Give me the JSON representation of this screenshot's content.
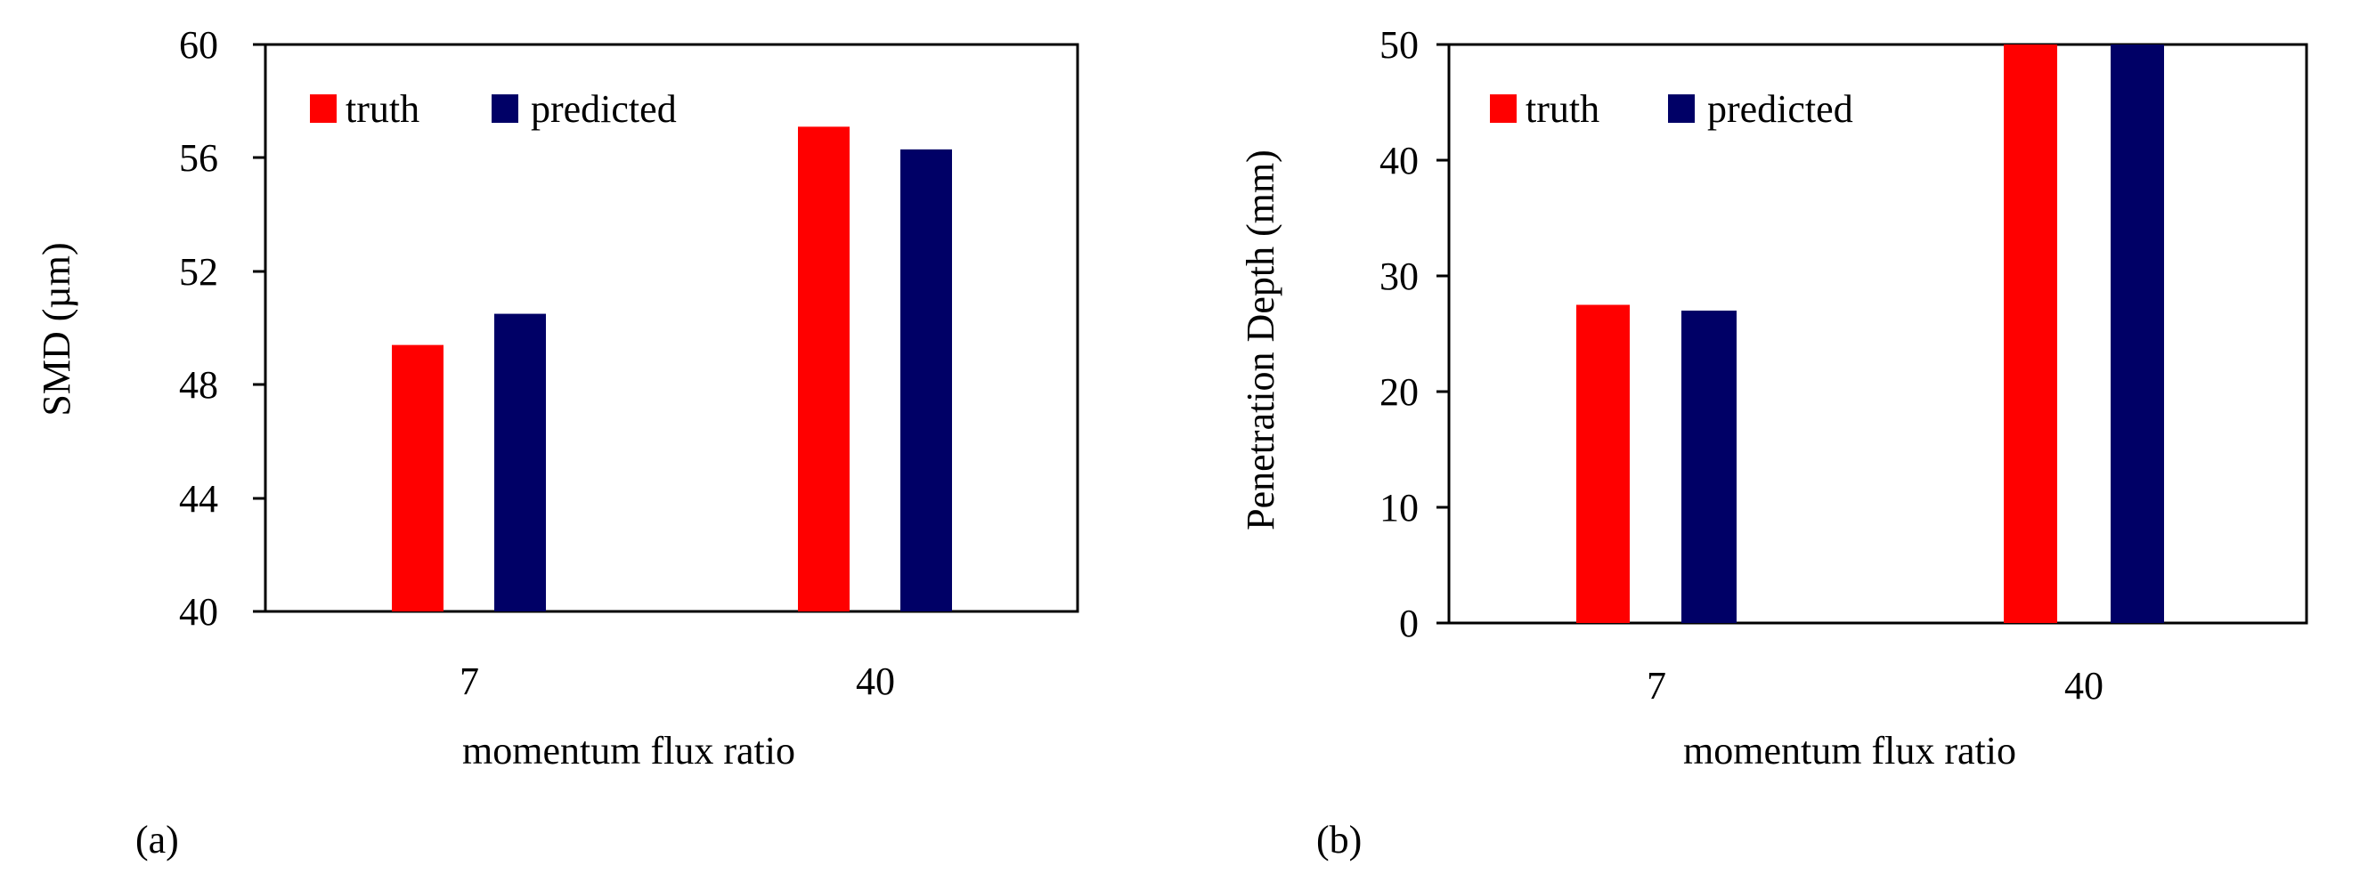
{
  "chart_data": [
    {
      "panel_label": "(a)",
      "type": "bar",
      "categories": [
        "7",
        "40"
      ],
      "xlabel": "momentum flux ratio",
      "ylabel": "SMD (µm)",
      "ylim": [
        40,
        60
      ],
      "yticks": [
        40,
        44,
        48,
        52,
        56,
        60
      ],
      "grid": false,
      "legend_position": "top-left",
      "series": [
        {
          "name": "truth",
          "color": "#ff0000",
          "values": [
            49.4,
            57.1
          ]
        },
        {
          "name": "predicted",
          "color": "#000066",
          "values": [
            50.5,
            56.3
          ]
        }
      ]
    },
    {
      "panel_label": "(b)",
      "type": "bar",
      "categories": [
        "7",
        "40"
      ],
      "xlabel": "momentum flux ratio",
      "ylabel": "Penetration Depth (mm)",
      "ylim": [
        0,
        50
      ],
      "yticks": [
        0,
        10,
        20,
        30,
        40,
        50
      ],
      "grid": false,
      "legend_position": "top-left",
      "series": [
        {
          "name": "truth",
          "color": "#ff0000",
          "values": [
            27.5,
            50
          ]
        },
        {
          "name": "predicted",
          "color": "#000066",
          "values": [
            27,
            50
          ]
        }
      ]
    }
  ]
}
